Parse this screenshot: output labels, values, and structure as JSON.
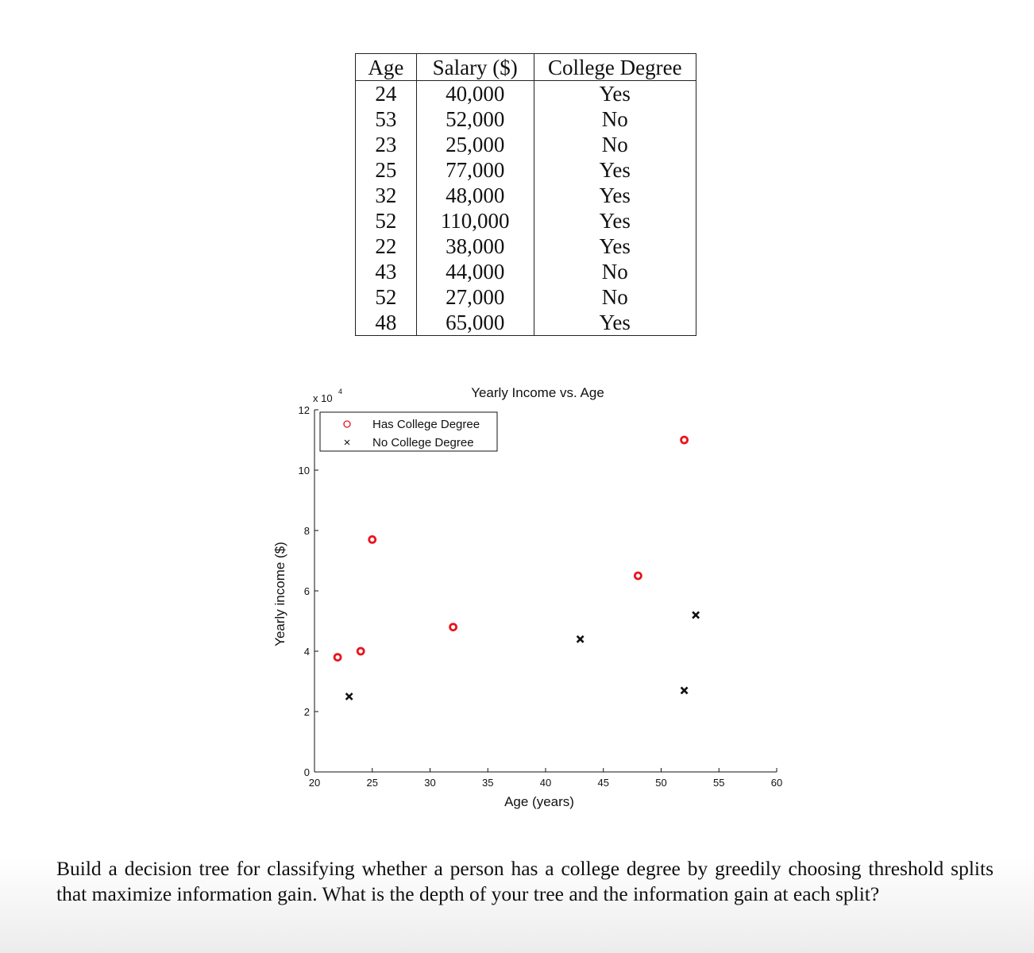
{
  "table": {
    "headers": [
      "Age",
      "Salary ($)",
      "College Degree"
    ],
    "rows": [
      [
        "24",
        "40,000",
        "Yes"
      ],
      [
        "53",
        "52,000",
        "No"
      ],
      [
        "23",
        "25,000",
        "No"
      ],
      [
        "25",
        "77,000",
        "Yes"
      ],
      [
        "32",
        "48,000",
        "Yes"
      ],
      [
        "52",
        "110,000",
        "Yes"
      ],
      [
        "22",
        "38,000",
        "Yes"
      ],
      [
        "43",
        "44,000",
        "No"
      ],
      [
        "52",
        "27,000",
        "No"
      ],
      [
        "48",
        "65,000",
        "Yes"
      ]
    ]
  },
  "chart_data": {
    "type": "scatter",
    "title": "Yearly Income vs. Age",
    "xlabel": "Age (years)",
    "ylabel": "Yearly income ($)",
    "y_multiplier_base": "x 10",
    "y_multiplier_exp": "4",
    "xlim": [
      20,
      60
    ],
    "ylim": [
      0,
      12
    ],
    "x_ticks": [
      20,
      25,
      30,
      35,
      40,
      45,
      50,
      55,
      60
    ],
    "y_ticks": [
      0,
      2,
      4,
      6,
      8,
      10,
      12
    ],
    "legend_position": "top-left",
    "series": [
      {
        "name": "Has College Degree",
        "marker": "circle",
        "color": "#e8141c",
        "points": [
          [
            24,
            4.0
          ],
          [
            25,
            7.7
          ],
          [
            32,
            4.8
          ],
          [
            52,
            11.0
          ],
          [
            22,
            3.8
          ],
          [
            48,
            6.5
          ]
        ]
      },
      {
        "name": "No College Degree",
        "marker": "x",
        "color": "#111111",
        "points": [
          [
            53,
            5.2
          ],
          [
            23,
            2.5
          ],
          [
            43,
            4.4
          ],
          [
            52,
            2.7
          ]
        ]
      }
    ]
  },
  "question": {
    "text": "Build a decision tree for classifying whether a person has a college degree by greedily choosing threshold splits that maximize information gain. What is the depth of your tree and the information gain at each split?"
  }
}
